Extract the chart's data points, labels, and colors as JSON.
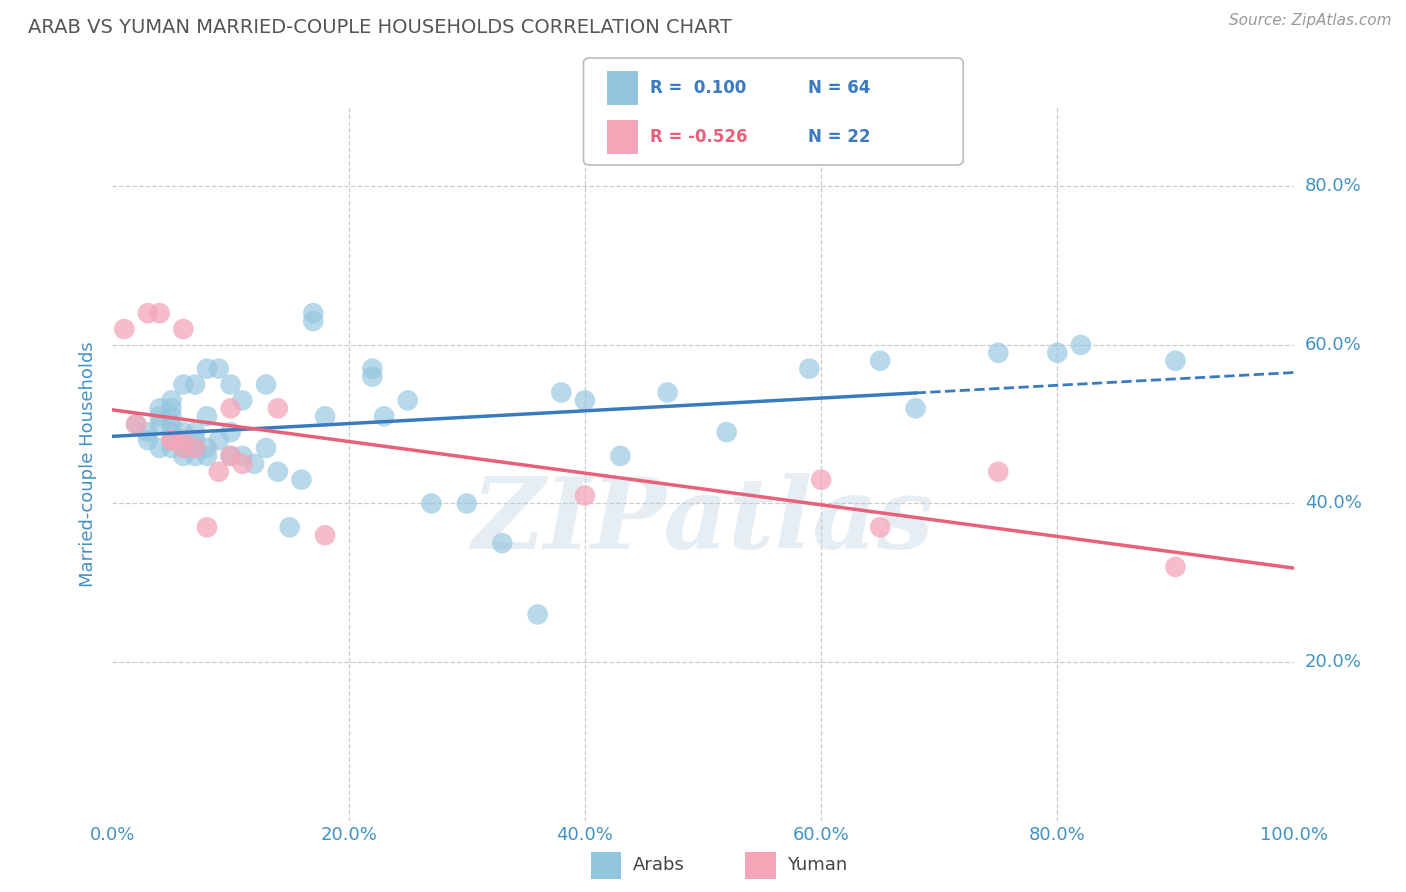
{
  "title": "ARAB VS YUMAN MARRIED-COUPLE HOUSEHOLDS CORRELATION CHART",
  "source": "Source: ZipAtlas.com",
  "ylabel": "Married-couple Households",
  "xlabel_ticks": [
    "0.0%",
    "20.0%",
    "40.0%",
    "60.0%",
    "80.0%",
    "100.0%"
  ],
  "ytick_labels": [
    "20.0%",
    "40.0%",
    "60.0%",
    "80.0%"
  ],
  "xlim": [
    0.0,
    1.0
  ],
  "ylim": [
    0.0,
    0.9
  ],
  "blue_R": 0.1,
  "blue_N": 64,
  "pink_R": -0.526,
  "pink_N": 22,
  "blue_color": "#92c5de",
  "pink_color": "#f4a6b8",
  "blue_line_color": "#3a7bbf",
  "pink_line_color": "#e8607a",
  "watermark": "ZIPatlas",
  "legend_N_color": "#3a7bbf",
  "blue_x": [
    0.02,
    0.03,
    0.03,
    0.04,
    0.04,
    0.04,
    0.04,
    0.05,
    0.05,
    0.05,
    0.05,
    0.05,
    0.05,
    0.05,
    0.06,
    0.06,
    0.06,
    0.06,
    0.06,
    0.07,
    0.07,
    0.07,
    0.07,
    0.07,
    0.08,
    0.08,
    0.08,
    0.08,
    0.09,
    0.09,
    0.1,
    0.1,
    0.1,
    0.11,
    0.11,
    0.12,
    0.13,
    0.13,
    0.14,
    0.15,
    0.16,
    0.17,
    0.17,
    0.18,
    0.22,
    0.22,
    0.23,
    0.25,
    0.27,
    0.3,
    0.33,
    0.36,
    0.38,
    0.4,
    0.43,
    0.47,
    0.52,
    0.59,
    0.65,
    0.68,
    0.75,
    0.8,
    0.82,
    0.9
  ],
  "blue_y": [
    0.5,
    0.49,
    0.48,
    0.47,
    0.5,
    0.51,
    0.52,
    0.48,
    0.49,
    0.5,
    0.51,
    0.52,
    0.53,
    0.47,
    0.46,
    0.47,
    0.48,
    0.49,
    0.55,
    0.46,
    0.47,
    0.48,
    0.49,
    0.55,
    0.46,
    0.47,
    0.51,
    0.57,
    0.48,
    0.57,
    0.46,
    0.49,
    0.55,
    0.46,
    0.53,
    0.45,
    0.47,
    0.55,
    0.44,
    0.37,
    0.43,
    0.63,
    0.64,
    0.51,
    0.56,
    0.57,
    0.51,
    0.53,
    0.4,
    0.4,
    0.35,
    0.26,
    0.54,
    0.53,
    0.46,
    0.54,
    0.49,
    0.57,
    0.58,
    0.52,
    0.59,
    0.59,
    0.6,
    0.58
  ],
  "pink_x": [
    0.01,
    0.02,
    0.03,
    0.04,
    0.05,
    0.05,
    0.06,
    0.06,
    0.06,
    0.07,
    0.08,
    0.09,
    0.1,
    0.1,
    0.11,
    0.14,
    0.18,
    0.4,
    0.6,
    0.65,
    0.75,
    0.9
  ],
  "pink_y": [
    0.62,
    0.5,
    0.64,
    0.64,
    0.48,
    0.48,
    0.47,
    0.62,
    0.48,
    0.47,
    0.37,
    0.44,
    0.46,
    0.52,
    0.45,
    0.52,
    0.36,
    0.41,
    0.43,
    0.37,
    0.44,
    0.32
  ],
  "yticks": [
    0.2,
    0.4,
    0.6,
    0.8
  ],
  "xticks": [
    0.0,
    0.2,
    0.4,
    0.6,
    0.8,
    1.0
  ],
  "grid_color": "#cccccc",
  "bg_color": "#ffffff",
  "tick_color": "#4292c6",
  "blue_line_solid_end": 0.68,
  "blue_line_dash_start": 0.68
}
